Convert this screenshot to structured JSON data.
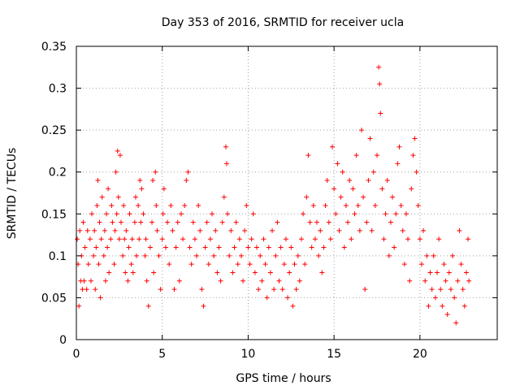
{
  "chart_data": {
    "type": "scatter",
    "title": "Day 353 of 2016, SRMTID for receiver ucla",
    "xlabel": "GPS time / hours",
    "ylabel": "SRMTID / TECUs",
    "xlim": [
      0,
      24.5
    ],
    "ylim": [
      0,
      0.35
    ],
    "x_ticks": [
      0,
      5,
      10,
      15,
      20
    ],
    "x_tick_labels": [
      "0",
      "5",
      "10",
      "15",
      "20"
    ],
    "y_ticks": [
      0,
      0.05,
      0.1,
      0.15,
      0.2,
      0.25,
      0.3,
      0.35
    ],
    "y_tick_labels": [
      "0",
      "0.05",
      "0.1",
      "0.15",
      "0.2",
      "0.25",
      "0.3",
      "0.35"
    ],
    "grid": true,
    "marker": "plus",
    "color": "#ff0000",
    "series": [
      {
        "name": "SRMTID",
        "points": [
          [
            0.05,
            0.12
          ],
          [
            0.1,
            0.09
          ],
          [
            0.15,
            0.04
          ],
          [
            0.2,
            0.13
          ],
          [
            0.25,
            0.07
          ],
          [
            0.3,
            0.1
          ],
          [
            0.35,
            0.06
          ],
          [
            0.4,
            0.14
          ],
          [
            0.45,
            0.07
          ],
          [
            0.5,
            0.11
          ],
          [
            0.6,
            0.06
          ],
          [
            0.65,
            0.13
          ],
          [
            0.7,
            0.09
          ],
          [
            0.8,
            0.12
          ],
          [
            0.85,
            0.07
          ],
          [
            0.9,
            0.15
          ],
          [
            1.0,
            0.1
          ],
          [
            1.05,
            0.13
          ],
          [
            1.1,
            0.06
          ],
          [
            1.15,
            0.11
          ],
          [
            1.2,
            0.16
          ],
          [
            1.25,
            0.19
          ],
          [
            1.3,
            0.09
          ],
          [
            1.35,
            0.14
          ],
          [
            1.4,
            0.05
          ],
          [
            1.45,
            0.12
          ],
          [
            1.5,
            0.17
          ],
          [
            1.6,
            0.1
          ],
          [
            1.65,
            0.13
          ],
          [
            1.7,
            0.07
          ],
          [
            1.75,
            0.15
          ],
          [
            1.8,
            0.11
          ],
          [
            1.85,
            0.18
          ],
          [
            1.9,
            0.08
          ],
          [
            2.0,
            0.12
          ],
          [
            2.05,
            0.16
          ],
          [
            2.1,
            0.14
          ],
          [
            2.2,
            0.09
          ],
          [
            2.25,
            0.13
          ],
          [
            2.3,
            0.2
          ],
          [
            2.35,
            0.15
          ],
          [
            2.4,
            0.225
          ],
          [
            2.45,
            0.17
          ],
          [
            2.5,
            0.12
          ],
          [
            2.55,
            0.22
          ],
          [
            2.6,
            0.14
          ],
          [
            2.7,
            0.1
          ],
          [
            2.75,
            0.16
          ],
          [
            2.8,
            0.12
          ],
          [
            2.85,
            0.08
          ],
          [
            2.9,
            0.13
          ],
          [
            3.0,
            0.07
          ],
          [
            3.05,
            0.11
          ],
          [
            3.1,
            0.15
          ],
          [
            3.2,
            0.09
          ],
          [
            3.25,
            0.12
          ],
          [
            3.3,
            0.08
          ],
          [
            3.4,
            0.14
          ],
          [
            3.45,
            0.17
          ],
          [
            3.5,
            0.1
          ],
          [
            3.6,
            0.16
          ],
          [
            3.65,
            0.12
          ],
          [
            3.7,
            0.19
          ],
          [
            3.75,
            0.14
          ],
          [
            3.8,
            0.18
          ],
          [
            3.9,
            0.15
          ],
          [
            4.0,
            0.1
          ],
          [
            4.05,
            0.12
          ],
          [
            4.1,
            0.07
          ],
          [
            4.2,
            0.04
          ],
          [
            4.3,
            0.11
          ],
          [
            4.4,
            0.14
          ],
          [
            4.45,
            0.19
          ],
          [
            4.5,
            0.08
          ],
          [
            4.6,
            0.2
          ],
          [
            4.65,
            0.16
          ],
          [
            4.7,
            0.13
          ],
          [
            4.8,
            0.1
          ],
          [
            4.9,
            0.06
          ],
          [
            5.0,
            0.12
          ],
          [
            5.05,
            0.15
          ],
          [
            5.1,
            0.18
          ],
          [
            5.2,
            0.11
          ],
          [
            5.3,
            0.14
          ],
          [
            5.4,
            0.09
          ],
          [
            5.5,
            0.16
          ],
          [
            5.6,
            0.13
          ],
          [
            5.7,
            0.06
          ],
          [
            5.8,
            0.11
          ],
          [
            5.9,
            0.14
          ],
          [
            6.0,
            0.07
          ],
          [
            6.1,
            0.15
          ],
          [
            6.2,
            0.12
          ],
          [
            6.3,
            0.16
          ],
          [
            6.4,
            0.19
          ],
          [
            6.5,
            0.2
          ],
          [
            6.6,
            0.11
          ],
          [
            6.7,
            0.09
          ],
          [
            6.8,
            0.14
          ],
          [
            6.9,
            0.12
          ],
          [
            7.0,
            0.1
          ],
          [
            7.1,
            0.16
          ],
          [
            7.2,
            0.13
          ],
          [
            7.3,
            0.06
          ],
          [
            7.4,
            0.04
          ],
          [
            7.5,
            0.11
          ],
          [
            7.6,
            0.14
          ],
          [
            7.7,
            0.09
          ],
          [
            7.8,
            0.12
          ],
          [
            7.9,
            0.15
          ],
          [
            8.0,
            0.1
          ],
          [
            8.1,
            0.13
          ],
          [
            8.2,
            0.08
          ],
          [
            8.3,
            0.11
          ],
          [
            8.4,
            0.07
          ],
          [
            8.5,
            0.14
          ],
          [
            8.6,
            0.17
          ],
          [
            8.7,
            0.23
          ],
          [
            8.75,
            0.21
          ],
          [
            8.8,
            0.15
          ],
          [
            8.9,
            0.1
          ],
          [
            9.0,
            0.13
          ],
          [
            9.1,
            0.08
          ],
          [
            9.2,
            0.11
          ],
          [
            9.3,
            0.14
          ],
          [
            9.4,
            0.09
          ],
          [
            9.5,
            0.12
          ],
          [
            9.6,
            0.1
          ],
          [
            9.7,
            0.07
          ],
          [
            9.8,
            0.13
          ],
          [
            9.9,
            0.16
          ],
          [
            10.0,
            0.11
          ],
          [
            10.1,
            0.09
          ],
          [
            10.2,
            0.12
          ],
          [
            10.3,
            0.15
          ],
          [
            10.4,
            0.08
          ],
          [
            10.5,
            0.11
          ],
          [
            10.6,
            0.06
          ],
          [
            10.7,
            0.1
          ],
          [
            10.8,
            0.07
          ],
          [
            10.9,
            0.12
          ],
          [
            11.0,
            0.09
          ],
          [
            11.1,
            0.05
          ],
          [
            11.2,
            0.11
          ],
          [
            11.3,
            0.08
          ],
          [
            11.4,
            0.13
          ],
          [
            11.5,
            0.06
          ],
          [
            11.6,
            0.1
          ],
          [
            11.7,
            0.14
          ],
          [
            11.8,
            0.07
          ],
          [
            11.9,
            0.11
          ],
          [
            12.0,
            0.06
          ],
          [
            12.1,
            0.09
          ],
          [
            12.2,
            0.12
          ],
          [
            12.3,
            0.05
          ],
          [
            12.4,
            0.08
          ],
          [
            12.5,
            0.11
          ],
          [
            12.6,
            0.04
          ],
          [
            12.7,
            0.09
          ],
          [
            12.8,
            0.06
          ],
          [
            12.9,
            0.1
          ],
          [
            13.0,
            0.07
          ],
          [
            13.1,
            0.12
          ],
          [
            13.2,
            0.15
          ],
          [
            13.3,
            0.09
          ],
          [
            13.4,
            0.17
          ],
          [
            13.5,
            0.22
          ],
          [
            13.6,
            0.14
          ],
          [
            13.7,
            0.11
          ],
          [
            13.8,
            0.16
          ],
          [
            13.9,
            0.12
          ],
          [
            14.0,
            0.14
          ],
          [
            14.1,
            0.1
          ],
          [
            14.2,
            0.13
          ],
          [
            14.3,
            0.08
          ],
          [
            14.4,
            0.11
          ],
          [
            14.5,
            0.16
          ],
          [
            14.6,
            0.19
          ],
          [
            14.7,
            0.14
          ],
          [
            14.8,
            0.12
          ],
          [
            14.9,
            0.23
          ],
          [
            15.0,
            0.18
          ],
          [
            15.1,
            0.15
          ],
          [
            15.2,
            0.21
          ],
          [
            15.3,
            0.13
          ],
          [
            15.4,
            0.17
          ],
          [
            15.5,
            0.2
          ],
          [
            15.6,
            0.11
          ],
          [
            15.7,
            0.16
          ],
          [
            15.8,
            0.14
          ],
          [
            15.9,
            0.19
          ],
          [
            16.0,
            0.12
          ],
          [
            16.1,
            0.18
          ],
          [
            16.2,
            0.15
          ],
          [
            16.3,
            0.22
          ],
          [
            16.4,
            0.16
          ],
          [
            16.5,
            0.13
          ],
          [
            16.6,
            0.25
          ],
          [
            16.7,
            0.17
          ],
          [
            16.8,
            0.06
          ],
          [
            16.9,
            0.14
          ],
          [
            17.0,
            0.19
          ],
          [
            17.1,
            0.24
          ],
          [
            17.2,
            0.13
          ],
          [
            17.3,
            0.2
          ],
          [
            17.4,
            0.16
          ],
          [
            17.5,
            0.22
          ],
          [
            17.6,
            0.325
          ],
          [
            17.65,
            0.305
          ],
          [
            17.7,
            0.27
          ],
          [
            17.8,
            0.18
          ],
          [
            17.9,
            0.12
          ],
          [
            18.0,
            0.15
          ],
          [
            18.1,
            0.19
          ],
          [
            18.2,
            0.1
          ],
          [
            18.3,
            0.14
          ],
          [
            18.4,
            0.17
          ],
          [
            18.5,
            0.11
          ],
          [
            18.6,
            0.15
          ],
          [
            18.7,
            0.21
          ],
          [
            18.8,
            0.23
          ],
          [
            18.9,
            0.16
          ],
          [
            19.0,
            0.13
          ],
          [
            19.1,
            0.09
          ],
          [
            19.2,
            0.15
          ],
          [
            19.3,
            0.12
          ],
          [
            19.4,
            0.07
          ],
          [
            19.5,
            0.18
          ],
          [
            19.6,
            0.22
          ],
          [
            19.7,
            0.24
          ],
          [
            19.8,
            0.2
          ],
          [
            19.9,
            0.16
          ],
          [
            20.0,
            0.12
          ],
          [
            20.1,
            0.09
          ],
          [
            20.2,
            0.13
          ],
          [
            20.3,
            0.07
          ],
          [
            20.4,
            0.1
          ],
          [
            20.5,
            0.04
          ],
          [
            20.6,
            0.08
          ],
          [
            20.7,
            0.06
          ],
          [
            20.8,
            0.1
          ],
          [
            20.9,
            0.05
          ],
          [
            21.0,
            0.08
          ],
          [
            21.1,
            0.12
          ],
          [
            21.2,
            0.06
          ],
          [
            21.3,
            0.04
          ],
          [
            21.4,
            0.09
          ],
          [
            21.5,
            0.07
          ],
          [
            21.6,
            0.03
          ],
          [
            21.7,
            0.08
          ],
          [
            21.8,
            0.06
          ],
          [
            21.9,
            0.1
          ],
          [
            22.0,
            0.05
          ],
          [
            22.1,
            0.02
          ],
          [
            22.2,
            0.07
          ],
          [
            22.3,
            0.13
          ],
          [
            22.4,
            0.09
          ],
          [
            22.5,
            0.06
          ],
          [
            22.6,
            0.04
          ],
          [
            22.7,
            0.08
          ],
          [
            22.8,
            0.12
          ],
          [
            22.85,
            0.07
          ]
        ]
      }
    ]
  }
}
